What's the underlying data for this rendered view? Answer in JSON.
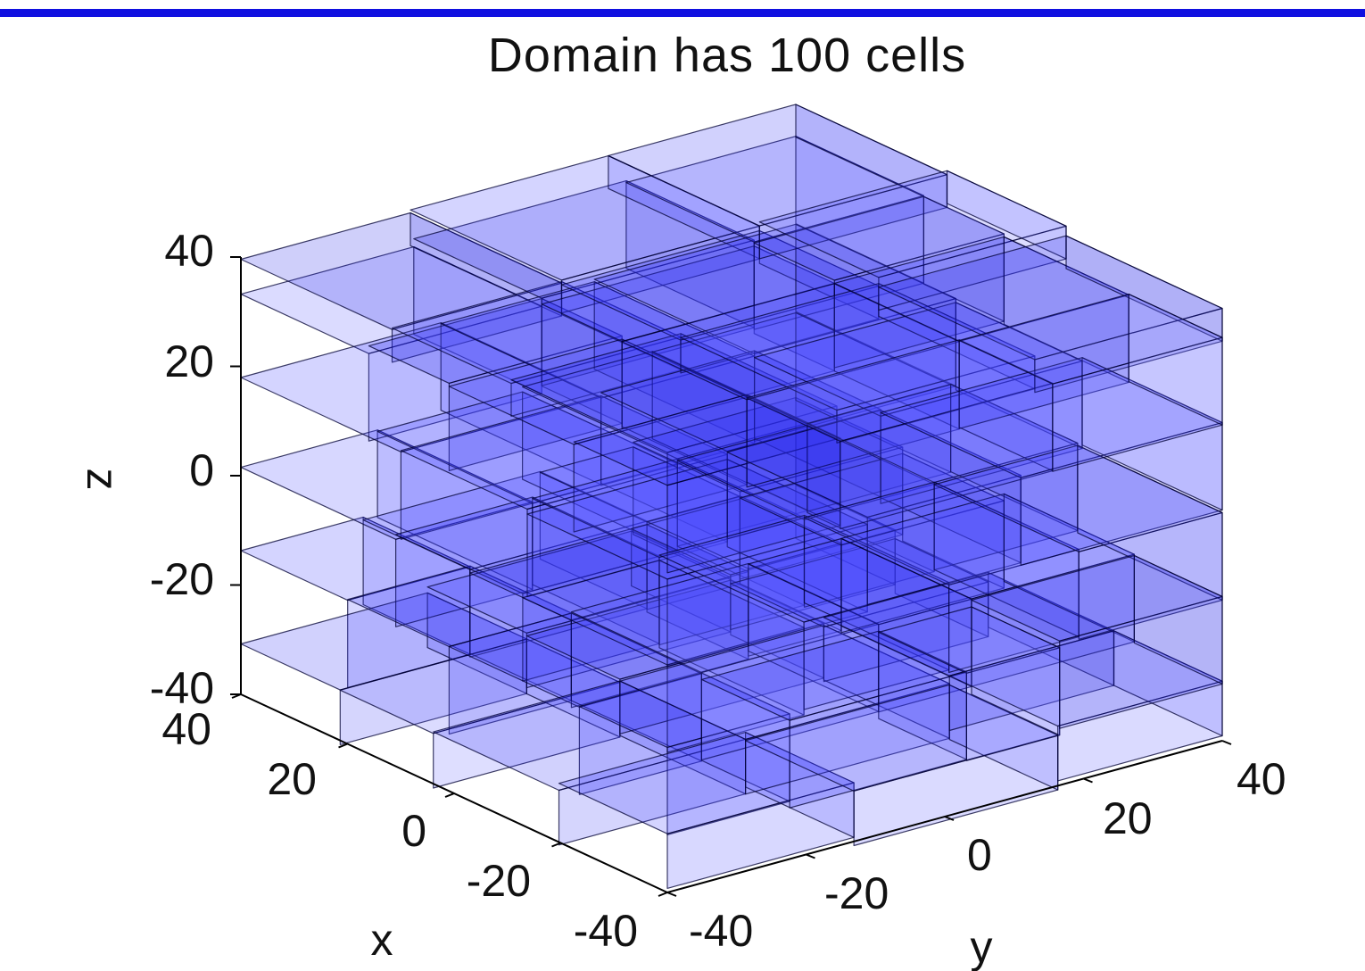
{
  "header": {
    "rule_color": "#1010e0"
  },
  "chart_data": {
    "type": "3d-cell-plot",
    "title": "Domain has 100 cells",
    "cell_count": 100,
    "face_color": "#3030ff",
    "edge_color": "#000033",
    "x_axis": {
      "label": "x",
      "range": [
        -40,
        40
      ],
      "ticks": [
        "40",
        "20",
        "0",
        "-20",
        "-40"
      ]
    },
    "y_axis": {
      "label": "y",
      "range": [
        -40,
        40
      ],
      "ticks": [
        "-40",
        "-20",
        "0",
        "20",
        "40"
      ]
    },
    "z_axis": {
      "label": "z",
      "range": [
        -40,
        40
      ],
      "ticks": [
        "40",
        "20",
        "0",
        "-20",
        "-40"
      ]
    }
  }
}
